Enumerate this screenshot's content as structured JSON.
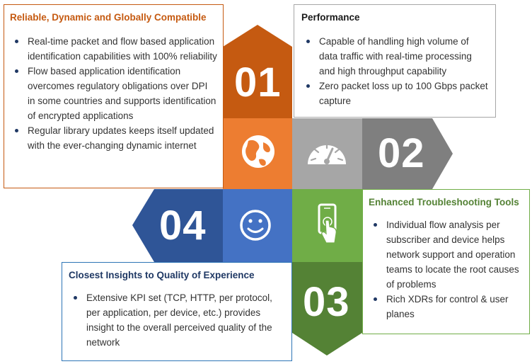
{
  "colors": {
    "orange_dark": "#c55a11",
    "orange": "#ed7d31",
    "gray": "#a6a6a6",
    "gray_dark": "#7f7f7f",
    "blue": "#4472c4",
    "blue_dark": "#2f5597",
    "green": "#70ad47",
    "green_dark": "#548235"
  },
  "icons": {
    "q1": "globe-icon",
    "q2": "speedometer-icon",
    "q3": "phone-touch-icon",
    "q4": "smiley-icon"
  },
  "segments": [
    {
      "number": "01",
      "title": "Reliable, Dynamic and Globally Compatible",
      "bullets": [
        "Real-time packet and flow based application identification capabilities with 100% reliability",
        "Flow based application identification overcomes regulatory obligations over DPI in some countries and supports identification of encrypted applications",
        "Regular library updates keeps itself updated with the ever-changing dynamic internet"
      ]
    },
    {
      "number": "02",
      "title": "Performance",
      "bullets": [
        "Capable of handling high volume of data traffic with real-time processing and high throughput capability",
        "Zero packet loss up to 100 Gbps packet capture"
      ]
    },
    {
      "number": "03",
      "title": "Enhanced Troubleshooting Tools",
      "bullets": [
        "Individual flow analysis per subscriber and device helps network support and operation teams to locate the root causes of problems",
        "Rich XDRs for control & user planes"
      ]
    },
    {
      "number": "04",
      "title": "Closest Insights to Quality of Experience",
      "bullets": [
        "Extensive KPI set (TCP, HTTP, per protocol, per application, per device, etc.) provides insight to the overall perceived quality of the network"
      ]
    }
  ]
}
